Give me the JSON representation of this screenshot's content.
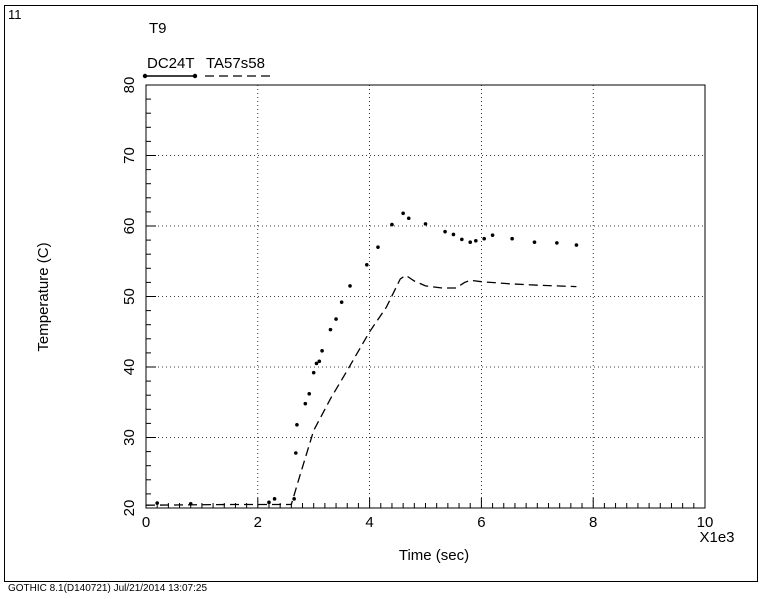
{
  "plot_number": "11",
  "footer": "GOTHIC 8.1(D140721) Jul/21/2014 13:07:25",
  "chart_data": {
    "type": "line",
    "title": "T9",
    "xlabel": "Time (sec)",
    "ylabel": "Temperature (C)",
    "x_multiplier_label": "X1e3",
    "xlim": [
      0,
      10
    ],
    "ylim": [
      20,
      80
    ],
    "x_ticks": [
      0,
      2,
      4,
      6,
      8,
      10
    ],
    "y_ticks": [
      20,
      30,
      40,
      50,
      60,
      70,
      80
    ],
    "grid": true,
    "legend_placement": "top-left",
    "series": [
      {
        "name": "DC24T",
        "style": "dotted",
        "color": "#000000",
        "points": [
          [
            0.2,
            20.7
          ],
          [
            0.8,
            20.6
          ],
          [
            2.2,
            20.8
          ],
          [
            2.3,
            21.3
          ],
          [
            2.65,
            21.3
          ],
          [
            2.68,
            27.8
          ],
          [
            2.7,
            31.8
          ],
          [
            2.85,
            34.8
          ],
          [
            2.92,
            36.2
          ],
          [
            3.0,
            39.2
          ],
          [
            3.05,
            40.5
          ],
          [
            3.1,
            40.8
          ],
          [
            3.15,
            42.3
          ],
          [
            3.3,
            45.3
          ],
          [
            3.4,
            46.8
          ],
          [
            3.5,
            49.2
          ],
          [
            3.65,
            51.5
          ],
          [
            3.95,
            54.5
          ],
          [
            4.15,
            57.0
          ],
          [
            4.4,
            60.2
          ],
          [
            4.6,
            61.8
          ],
          [
            4.7,
            61.1
          ],
          [
            5.0,
            60.3
          ],
          [
            5.35,
            59.2
          ],
          [
            5.5,
            58.8
          ],
          [
            5.65,
            58.1
          ],
          [
            5.8,
            57.7
          ],
          [
            5.9,
            57.9
          ],
          [
            6.05,
            58.2
          ],
          [
            6.2,
            58.7
          ],
          [
            6.55,
            58.2
          ],
          [
            6.95,
            57.7
          ],
          [
            7.35,
            57.6
          ],
          [
            7.7,
            57.3
          ]
        ]
      },
      {
        "name": "TA57s58",
        "style": "dashed",
        "color": "#000000",
        "points": [
          [
            0,
            20.4
          ],
          [
            1.5,
            20.5
          ],
          [
            2.6,
            20.5
          ],
          [
            2.75,
            24.5
          ],
          [
            3.0,
            31.0
          ],
          [
            3.3,
            35.5
          ],
          [
            3.6,
            39.5
          ],
          [
            4.0,
            45.0
          ],
          [
            4.3,
            48.5
          ],
          [
            4.55,
            52.5
          ],
          [
            4.65,
            53.0
          ],
          [
            4.8,
            52.2
          ],
          [
            5.0,
            51.5
          ],
          [
            5.3,
            51.2
          ],
          [
            5.55,
            51.2
          ],
          [
            5.7,
            52.0
          ],
          [
            5.8,
            52.3
          ],
          [
            6.0,
            52.1
          ],
          [
            6.5,
            51.8
          ],
          [
            7.0,
            51.6
          ],
          [
            7.7,
            51.4
          ]
        ]
      }
    ]
  }
}
